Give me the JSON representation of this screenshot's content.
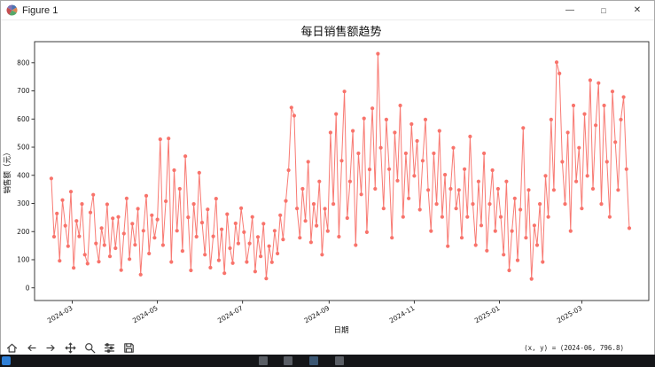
{
  "titlebar": {
    "title": "Figure 1",
    "minimize_glyph": "—",
    "maximize_glyph": "□",
    "close_glyph": "✕",
    "app_icon": "matplotlib-logo-icon"
  },
  "toolbar": {
    "buttons": [
      "home",
      "back",
      "forward",
      "pan",
      "zoom",
      "configure-subplots",
      "save"
    ],
    "status": "(x, y) = (2024-06, 796.8)"
  },
  "taskbar": {
    "icons": [
      "start-app-icon",
      "pinned-app-1",
      "pinned-app-2",
      "pinned-app-3",
      "pinned-app-4"
    ]
  },
  "chart_data": {
    "type": "line",
    "title": "每日销售额趋势",
    "xlabel": "日期",
    "ylabel": "销售额（元）",
    "line_color": "#f8736b",
    "marker": "o",
    "grid": false,
    "legend": "none",
    "x_start_date": "2024-02-15",
    "x_step_days": 2,
    "xlim_days": [
      -12,
      428
    ],
    "ylim": [
      -45,
      875
    ],
    "yticks": [
      0,
      100,
      200,
      300,
      400,
      500,
      600,
      700,
      800
    ],
    "xticks": [
      {
        "label": "2024-03",
        "day": 15
      },
      {
        "label": "2024-05",
        "day": 76
      },
      {
        "label": "2024-07",
        "day": 137
      },
      {
        "label": "2024-09",
        "day": 199
      },
      {
        "label": "2024-11",
        "day": 260
      },
      {
        "label": "2025-01",
        "day": 321
      },
      {
        "label": "2025-03",
        "day": 380
      }
    ],
    "values": [
      389,
      182,
      264,
      96,
      312,
      221,
      148,
      342,
      71,
      238,
      183,
      298,
      118,
      86,
      268,
      331,
      158,
      93,
      212,
      152,
      297,
      112,
      247,
      141,
      252,
      63,
      193,
      318,
      102,
      228,
      153,
      281,
      47,
      203,
      327,
      122,
      258,
      178,
      243,
      528,
      152,
      308,
      531,
      92,
      418,
      203,
      352,
      131,
      468,
      251,
      62,
      298,
      182,
      409,
      232,
      118,
      279,
      72,
      183,
      317,
      98,
      208,
      52,
      262,
      141,
      88,
      229,
      158,
      283,
      198,
      92,
      158,
      252,
      58,
      181,
      112,
      228,
      33,
      148,
      91,
      203,
      122,
      258,
      172,
      309,
      418,
      641,
      612,
      282,
      178,
      352,
      238,
      448,
      162,
      298,
      221,
      378,
      118,
      281,
      202,
      552,
      298,
      618,
      182,
      452,
      698,
      248,
      378,
      558,
      152,
      478,
      332,
      602,
      198,
      421,
      638,
      352,
      832,
      498,
      282,
      598,
      422,
      178,
      552,
      381,
      648,
      252,
      478,
      318,
      582,
      398,
      522,
      278,
      452,
      598,
      348,
      202,
      478,
      298,
      558,
      252,
      402,
      148,
      352,
      498,
      282,
      348,
      178,
      422,
      252,
      538,
      298,
      152,
      378,
      222,
      478,
      132,
      298,
      418,
      202,
      352,
      252,
      118,
      378,
      62,
      202,
      318,
      98,
      278,
      568,
      178,
      348,
      32,
      222,
      152,
      298,
      92,
      398,
      252,
      598,
      348,
      802,
      762,
      448,
      298,
      552,
      202,
      648,
      378,
      498,
      282,
      618,
      398,
      738,
      352,
      578,
      728,
      298,
      648,
      448,
      252,
      698,
      518,
      348,
      598,
      678,
      422,
      212
    ]
  }
}
